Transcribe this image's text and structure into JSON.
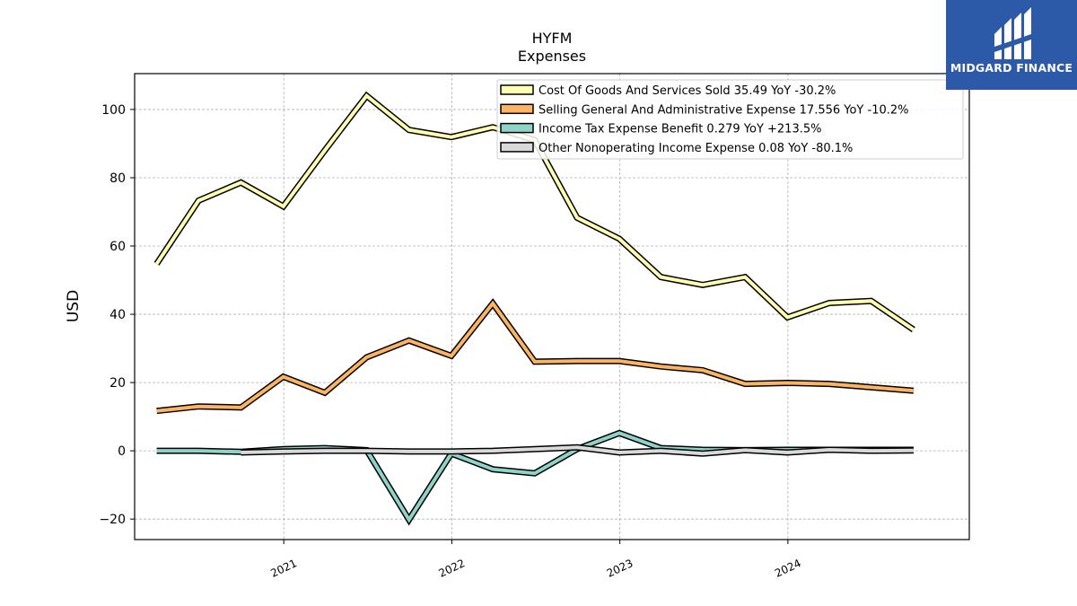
{
  "brand": {
    "name": "MIDGARD FINANCE",
    "logo_color": "#2d5aa8"
  },
  "chart_data": {
    "type": "line",
    "title": "HYFM",
    "subtitle": "Expenses",
    "xlabel": "",
    "ylabel": "USD",
    "ylim": [
      -26,
      110.5
    ],
    "yticks": [
      -20,
      0,
      20,
      40,
      60,
      80,
      100
    ],
    "ytick_labels": [
      "−20",
      "0",
      "20",
      "40",
      "60",
      "80",
      "100"
    ],
    "xlim": [
      "2020-02-12",
      "2025-01-29"
    ],
    "xticks": [
      "2021-01-01",
      "2022-01-01",
      "2023-01-01",
      "2024-01-01"
    ],
    "xtick_labels": [
      "2021",
      "2022",
      "2023",
      "2024"
    ],
    "grid": true,
    "legend_position": "top-right",
    "x": [
      "2020-03-31",
      "2020-06-30",
      "2020-09-30",
      "2020-12-31",
      "2021-03-31",
      "2021-06-30",
      "2021-09-30",
      "2021-12-31",
      "2022-03-31",
      "2022-06-30",
      "2022-09-30",
      "2022-12-31",
      "2023-03-31",
      "2023-06-30",
      "2023-09-30",
      "2023-12-31",
      "2024-03-31",
      "2024-06-30",
      "2024-09-30"
    ],
    "series": [
      {
        "name": "Cost Of Goods And Services Sold",
        "legend_label": "Cost Of Goods And Services Sold  35.49 YoY -30.2%",
        "color": "#ffffb3",
        "values": [
          54.8,
          73.3,
          78.6,
          71.6,
          88.0,
          104.0,
          94.0,
          91.9,
          94.8,
          91.0,
          68.3,
          62.1,
          50.9,
          48.6,
          50.9,
          39.1,
          43.3,
          43.9,
          35.5
        ]
      },
      {
        "name": "Selling General And Administrative Expense",
        "legend_label": "Selling General And Administrative Expense  17.556 YoY -10.2%",
        "color": "#fdb462",
        "values": [
          11.7,
          13.0,
          12.7,
          21.7,
          17.0,
          27.4,
          32.3,
          27.8,
          43.2,
          26.1,
          26.3,
          26.3,
          24.7,
          23.6,
          19.6,
          19.9,
          19.6,
          18.6,
          17.6
        ]
      },
      {
        "name": "Income Tax Expense Benefit",
        "legend_label": "Income Tax Expense Benefit  0.279 YoY +213.5%",
        "color": "#8dd3c7",
        "values": [
          0.0,
          0.0,
          -0.3,
          0.5,
          0.8,
          0.2,
          -20.2,
          -0.8,
          -5.4,
          -6.6,
          0.5,
          5.2,
          0.8,
          0.3,
          0.2,
          0.3,
          0.3,
          0.3,
          0.3
        ]
      },
      {
        "name": "Other Nonoperating Income Expense",
        "legend_label": "Other Nonoperating Income Expense  0.08 YoY -80.1%",
        "color": "#d9d9d9",
        "values": [
          null,
          null,
          -0.5,
          -0.2,
          0.0,
          0.0,
          -0.2,
          -0.2,
          0.0,
          0.5,
          1.0,
          -0.5,
          0.0,
          -0.8,
          0.2,
          -0.5,
          0.3,
          0.0,
          0.1
        ]
      }
    ]
  }
}
